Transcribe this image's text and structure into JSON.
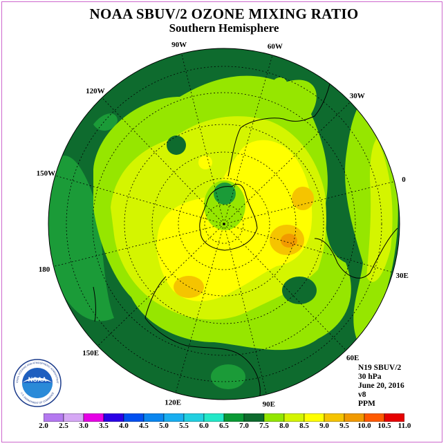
{
  "title": "NOAA SBUV/2 OZONE MIXING RATIO",
  "subtitle": "Southern Hemisphere",
  "info": {
    "instrument": "N19 SBUV/2",
    "pressure": "30 hPa",
    "date": "June 20, 2016",
    "version": "v8",
    "units": "PPM"
  },
  "logo": {
    "text": "NOAA",
    "ring_text": "NATIONAL OCEANIC AND ATMOSPHERIC ADMINISTRATION",
    "bottom_text": "U.S. DEPARTMENT OF COMMERCE"
  },
  "longitude_labels": [
    {
      "text": "90W",
      "angle": 0
    },
    {
      "text": "60W",
      "angle": 30
    },
    {
      "text": "30W",
      "angle": 60
    },
    {
      "text": "0",
      "angle": 90
    },
    {
      "text": "30E",
      "angle": 120
    },
    {
      "text": "60E",
      "angle": 150
    },
    {
      "text": "90E",
      "angle": 180
    },
    {
      "text": "120E",
      "angle": 210
    },
    {
      "text": "150E",
      "angle": 240
    },
    {
      "text": "180",
      "angle": 270
    },
    {
      "text": "150W",
      "angle": 300
    },
    {
      "text": "120W",
      "angle": 330
    }
  ],
  "colorbar": {
    "levels": [
      "2.0",
      "2.5",
      "3.0",
      "3.5",
      "4.0",
      "4.5",
      "5.0",
      "5.5",
      "6.0",
      "6.5",
      "7.0",
      "7.5",
      "8.0",
      "8.5",
      "9.0",
      "9.5",
      "10.0",
      "10.5",
      "11.0"
    ],
    "colors": [
      "#b479f0",
      "#d6a8f5",
      "#e600e6",
      "#2b00e6",
      "#0050f0",
      "#0a86ef",
      "#19aef0",
      "#22cfe0",
      "#23e8c8",
      "#0a9a36",
      "#0e6b2e",
      "#92e600",
      "#d4f500",
      "#ffff00",
      "#f5c400",
      "#f19a00",
      "#ff5a00",
      "#e60000",
      "#7a4a36"
    ]
  },
  "colors": {
    "dark_green": "#0e6b2e",
    "medium_green": "#1b9b38",
    "lime": "#96e600",
    "yellow_green": "#d4f500",
    "yellow": "#ffff00",
    "orange": "#f5c400",
    "dark_orange": "#f19a00"
  }
}
